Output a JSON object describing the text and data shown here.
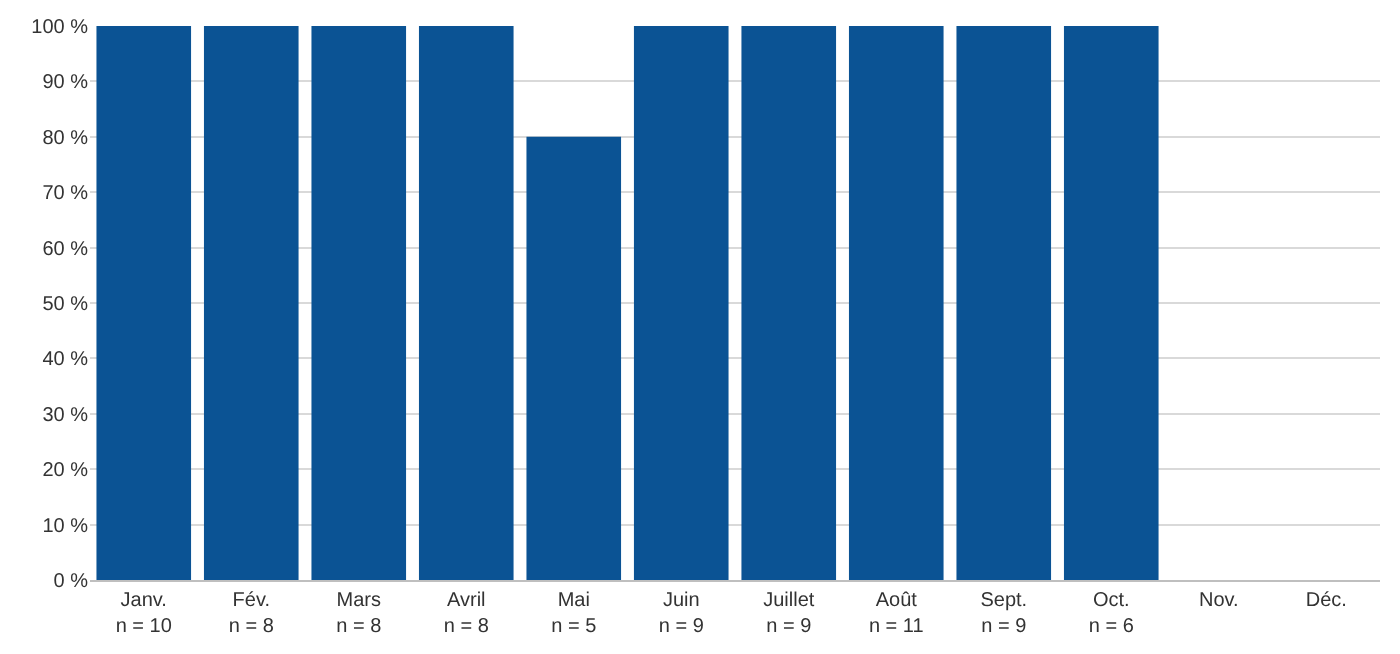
{
  "chart_data": {
    "type": "bar",
    "categories": [
      "Janv.\nn = 10",
      "Fév.\nn = 8",
      "Mars\nn = 8",
      "Avril\nn = 8",
      "Mai\nn = 5",
      "Juin\nn = 9",
      "Juillet\nn = 9",
      "Août\nn = 11",
      "Sept.\nn = 9",
      "Oct.\nn = 6",
      "Nov.",
      "Déc."
    ],
    "values": [
      100,
      100,
      100,
      100,
      80,
      100,
      100,
      100,
      100,
      100,
      null,
      null
    ],
    "color": "#0b5394",
    "ylim": [
      0,
      100
    ],
    "yticks": [
      {
        "value": 0,
        "label": "0 %"
      },
      {
        "value": 10,
        "label": "10 %"
      },
      {
        "value": 20,
        "label": "20 %"
      },
      {
        "value": 30,
        "label": "30 %"
      },
      {
        "value": 40,
        "label": "40 %"
      },
      {
        "value": 50,
        "label": "50 %"
      },
      {
        "value": 60,
        "label": "60 %"
      },
      {
        "value": 70,
        "label": "70 %"
      },
      {
        "value": 80,
        "label": "80 %"
      },
      {
        "value": 90,
        "label": "90 %"
      },
      {
        "value": 100,
        "label": "100 %"
      }
    ],
    "grid": "y",
    "legend": false
  }
}
